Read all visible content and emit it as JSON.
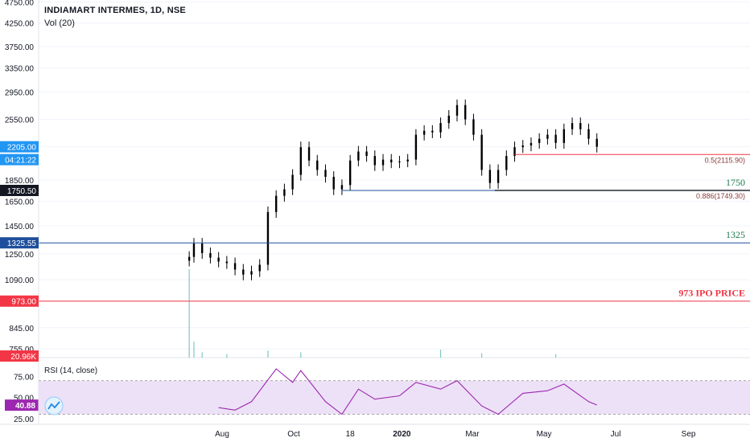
{
  "header": {
    "symbol_line": "INDIAMART INTERMES, 1D, NSE",
    "volume_indicator": "Vol (20)"
  },
  "rsi": {
    "label": "RSI (14, close)",
    "current_value": "40.88",
    "band_upper": 70,
    "band_lower": 30,
    "axis_ticks": [
      "75.00",
      "50.00",
      "25.00"
    ]
  },
  "price_axis_ticks": [
    "4750.00",
    "4250.00",
    "3750.00",
    "3350.00",
    "2950.00",
    "2550.00",
    "2205.00",
    "1850.00",
    "1650.00",
    "1450.00",
    "1250.00",
    "1090.00",
    "973.00",
    "845.00",
    "755.00"
  ],
  "price_tags": [
    {
      "label": "2205.00",
      "color": "#2196f3"
    },
    {
      "label": "04:21:22",
      "color": "#2196f3"
    },
    {
      "label": "1750.50",
      "color": "#131722"
    },
    {
      "label": "1325.55",
      "color": "#1e4f9c"
    },
    {
      "label": "973.00",
      "color": "#f23645"
    },
    {
      "label": "20.96K",
      "color": "#f23645"
    }
  ],
  "time_axis_ticks": [
    "Aug",
    "Oct",
    "18",
    "2020",
    "Mar",
    "May",
    "Jul",
    "Sep"
  ],
  "annotations": {
    "fib_05": "0.5(2115.90)",
    "fib_0886": "0.886(1749.30)",
    "level_1750": "1750",
    "level_1325": "1325",
    "ipo": "973 IPO PRICE"
  },
  "colors": {
    "up": "#26a69a",
    "down": "#ef5350",
    "candle": "#000000",
    "rsi_line": "#9c27b0",
    "rsi_band": "#ede1f7",
    "fib_red": "#f23645",
    "blue_line": "#1e4f9c",
    "green_text": "#1b7a4a"
  },
  "chart_data": {
    "type": "candlestick",
    "title": "INDIAMART INTERMES, 1D, NSE",
    "y_scale": "log",
    "ylim": [
      700,
      4800
    ],
    "horizontal_levels": [
      {
        "name": "0.5(2115.90)",
        "value": 2115.9
      },
      {
        "name": "0.886(1749.30)",
        "value": 1749.3
      },
      {
        "name": "1750",
        "value": 1750
      },
      {
        "name": "1325",
        "value": 1325
      },
      {
        "name": "973 IPO PRICE",
        "value": 973
      }
    ],
    "close_series": [
      {
        "x": "2019-07-04",
        "close": 1230
      },
      {
        "x": "2019-07-08",
        "close": 1320
      },
      {
        "x": "2019-07-15",
        "close": 1255
      },
      {
        "x": "2019-07-22",
        "close": 1225
      },
      {
        "x": "2019-07-29",
        "close": 1200
      },
      {
        "x": "2019-08-05",
        "close": 1190
      },
      {
        "x": "2019-08-12",
        "close": 1150
      },
      {
        "x": "2019-08-19",
        "close": 1120
      },
      {
        "x": "2019-08-26",
        "close": 1140
      },
      {
        "x": "2019-09-02",
        "close": 1180
      },
      {
        "x": "2019-09-09",
        "close": 1560
      },
      {
        "x": "2019-09-16",
        "close": 1700
      },
      {
        "x": "2019-09-23",
        "close": 1760
      },
      {
        "x": "2019-09-30",
        "close": 1900
      },
      {
        "x": "2019-10-07",
        "close": 2200
      },
      {
        "x": "2019-10-14",
        "close": 2050
      },
      {
        "x": "2019-10-21",
        "close": 1950
      },
      {
        "x": "2019-10-28",
        "close": 1880
      },
      {
        "x": "2019-11-04",
        "close": 1760
      },
      {
        "x": "2019-11-11",
        "close": 1800
      },
      {
        "x": "2019-11-18",
        "close": 2050
      },
      {
        "x": "2019-11-25",
        "close": 2150
      },
      {
        "x": "2019-12-02",
        "close": 2100
      },
      {
        "x": "2019-12-09",
        "close": 2000
      },
      {
        "x": "2019-12-16",
        "close": 2060
      },
      {
        "x": "2019-12-23",
        "close": 2030
      },
      {
        "x": "2019-12-30",
        "close": 2040
      },
      {
        "x": "2020-01-06",
        "close": 2060
      },
      {
        "x": "2020-01-13",
        "close": 2350
      },
      {
        "x": "2020-01-20",
        "close": 2400
      },
      {
        "x": "2020-01-27",
        "close": 2380
      },
      {
        "x": "2020-02-03",
        "close": 2500
      },
      {
        "x": "2020-02-10",
        "close": 2600
      },
      {
        "x": "2020-02-17",
        "close": 2750
      },
      {
        "x": "2020-02-24",
        "close": 2550
      },
      {
        "x": "2020-03-02",
        "close": 2350
      },
      {
        "x": "2020-03-09",
        "close": 1950
      },
      {
        "x": "2020-03-16",
        "close": 1820
      },
      {
        "x": "2020-03-23",
        "close": 1950
      },
      {
        "x": "2020-03-30",
        "close": 2100
      },
      {
        "x": "2020-04-06",
        "close": 2200
      },
      {
        "x": "2020-04-13",
        "close": 2220
      },
      {
        "x": "2020-04-20",
        "close": 2250
      },
      {
        "x": "2020-04-27",
        "close": 2300
      },
      {
        "x": "2020-05-04",
        "close": 2350
      },
      {
        "x": "2020-05-11",
        "close": 2250
      },
      {
        "x": "2020-05-18",
        "close": 2420
      },
      {
        "x": "2020-05-25",
        "close": 2500
      },
      {
        "x": "2020-06-01",
        "close": 2420
      },
      {
        "x": "2020-06-08",
        "close": 2300
      },
      {
        "x": "2020-06-15",
        "close": 2205
      }
    ],
    "volume_series": [
      {
        "x": "2019-07-04",
        "volume": 100
      },
      {
        "x": "2019-07-08",
        "volume": 18
      },
      {
        "x": "2019-07-15",
        "volume": 6
      },
      {
        "x": "2019-08-05",
        "volume": 4
      },
      {
        "x": "2019-09-09",
        "volume": 8
      },
      {
        "x": "2019-10-07",
        "volume": 6
      },
      {
        "x": "2020-02-03",
        "volume": 9
      },
      {
        "x": "2020-03-09",
        "volume": 5
      },
      {
        "x": "2020-05-11",
        "volume": 4
      }
    ],
    "rsi_series": [
      {
        "x": "2019-07-29",
        "rsi": 38
      },
      {
        "x": "2019-08-12",
        "rsi": 35
      },
      {
        "x": "2019-08-26",
        "rsi": 45
      },
      {
        "x": "2019-09-16",
        "rsi": 84
      },
      {
        "x": "2019-09-30",
        "rsi": 68
      },
      {
        "x": "2019-10-07",
        "rsi": 82
      },
      {
        "x": "2019-10-28",
        "rsi": 45
      },
      {
        "x": "2019-11-11",
        "rsi": 30
      },
      {
        "x": "2019-11-25",
        "rsi": 60
      },
      {
        "x": "2019-12-09",
        "rsi": 48
      },
      {
        "x": "2019-12-30",
        "rsi": 52
      },
      {
        "x": "2020-01-13",
        "rsi": 68
      },
      {
        "x": "2020-02-03",
        "rsi": 60
      },
      {
        "x": "2020-02-17",
        "rsi": 70
      },
      {
        "x": "2020-03-09",
        "rsi": 40
      },
      {
        "x": "2020-03-23",
        "rsi": 30
      },
      {
        "x": "2020-04-13",
        "rsi": 55
      },
      {
        "x": "2020-05-04",
        "rsi": 58
      },
      {
        "x": "2020-05-18",
        "rsi": 66
      },
      {
        "x": "2020-06-08",
        "rsi": 45
      },
      {
        "x": "2020-06-15",
        "rsi": 41
      }
    ]
  }
}
